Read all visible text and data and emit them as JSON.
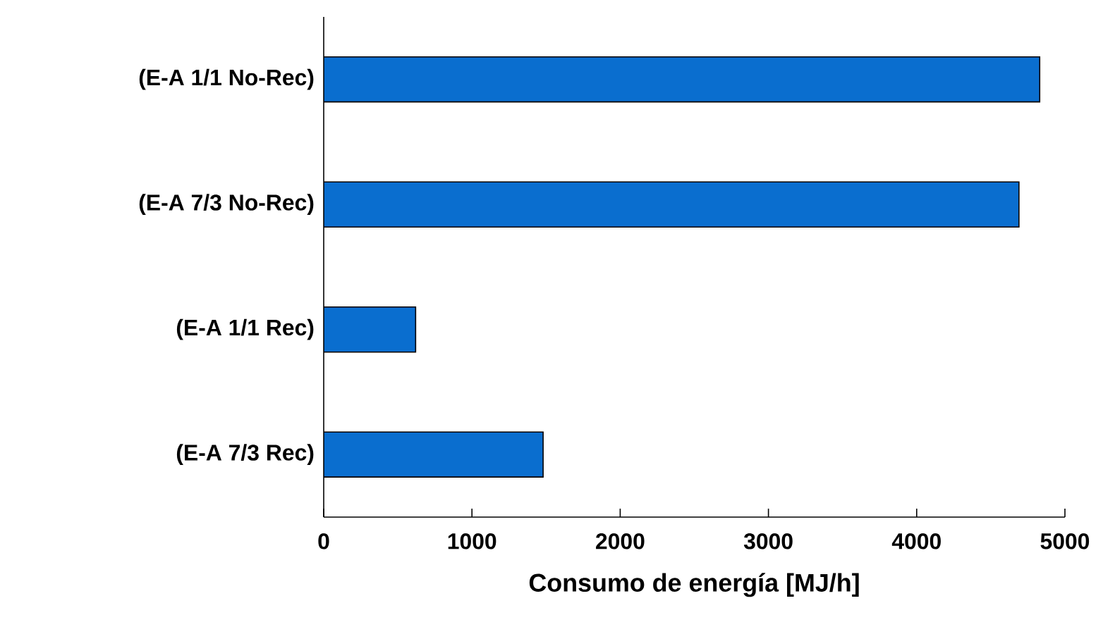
{
  "chart_data": {
    "type": "bar",
    "orientation": "horizontal",
    "xlabel": "Consumo de energía [MJ/h]",
    "categories": [
      "(E-A 1/1 No-Rec)",
      "(E-A 7/3 No-Rec)",
      "(E-A 1/1 Rec)",
      "(E-A 7/3 Rec)"
    ],
    "values": [
      4830,
      4690,
      620,
      1480
    ],
    "color": "#0a6ecf",
    "xlim": [
      0,
      5000
    ],
    "xticks": [
      0,
      1000,
      2000,
      3000,
      4000,
      5000
    ],
    "grid": false
  }
}
